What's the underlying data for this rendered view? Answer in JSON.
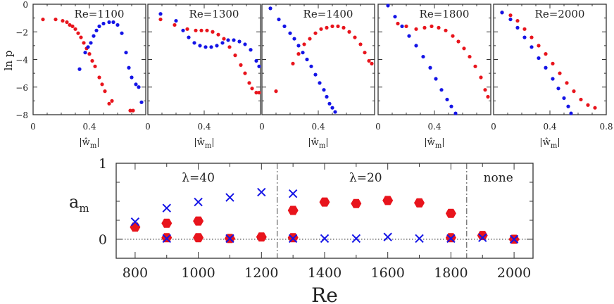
{
  "colors": {
    "red": "#e8141c",
    "blue": "#1414e6",
    "axis": "#333333"
  },
  "chart_data": [
    {
      "type": "scatter",
      "ylabel": "ln p",
      "xlabel": "|ŵ_m|",
      "xticks": [
        "0",
        "0.4",
        "0",
        "0.4",
        "0",
        "0.4",
        "0",
        "0.4",
        "0",
        "0.4",
        "0.8"
      ],
      "yticks": [
        "0",
        "−2",
        "−4",
        "−6",
        "−8"
      ],
      "panels": [
        {
          "title": "Re=1100",
          "xlim": [
            0,
            0.8
          ],
          "ylim": [
            -8,
            0
          ],
          "series": [
            {
              "color": "red",
              "points": [
                [
                  0.07,
                  -1.1
                ],
                [
                  0.16,
                  -1.1
                ],
                [
                  0.21,
                  -1.2
                ],
                [
                  0.24,
                  -1.3
                ],
                [
                  0.26,
                  -1.5
                ],
                [
                  0.28,
                  -1.6
                ],
                [
                  0.3,
                  -1.8
                ],
                [
                  0.32,
                  -2.1
                ],
                [
                  0.34,
                  -2.4
                ],
                [
                  0.36,
                  -2.8
                ],
                [
                  0.38,
                  -3.2
                ],
                [
                  0.4,
                  -3.6
                ],
                [
                  0.42,
                  -4.1
                ],
                [
                  0.44,
                  -4.5
                ],
                [
                  0.47,
                  -5.3
                ],
                [
                  0.49,
                  -5.8
                ],
                [
                  0.51,
                  -6.3
                ],
                [
                  0.54,
                  -7.2
                ],
                [
                  0.56,
                  -7.0
                ],
                [
                  0.69,
                  -7.7
                ],
                [
                  0.71,
                  -7.7
                ]
              ]
            },
            {
              "color": "blue",
              "points": [
                [
                  0.33,
                  -4.7
                ],
                [
                  0.37,
                  -3.5
                ],
                [
                  0.39,
                  -3.1
                ],
                [
                  0.41,
                  -2.8
                ],
                [
                  0.43,
                  -2.3
                ],
                [
                  0.45,
                  -1.9
                ],
                [
                  0.47,
                  -1.6
                ],
                [
                  0.5,
                  -1.4
                ],
                [
                  0.54,
                  -1.3
                ],
                [
                  0.57,
                  -1.3
                ],
                [
                  0.6,
                  -1.5
                ],
                [
                  0.63,
                  -2.1
                ],
                [
                  0.66,
                  -3.5
                ],
                [
                  0.68,
                  -4.6
                ],
                [
                  0.7,
                  -5.3
                ],
                [
                  0.73,
                  -5.8
                ],
                [
                  0.75,
                  -6.0
                ],
                [
                  0.77,
                  -7.1
                ]
              ]
            }
          ]
        },
        {
          "title": "Re=1300",
          "xlim": [
            0,
            0.8
          ],
          "ylim": [
            -8,
            0
          ],
          "series": [
            {
              "color": "red",
              "points": [
                [
                  0.09,
                  -1.1
                ],
                [
                  0.19,
                  -1.5
                ],
                [
                  0.28,
                  -1.8
                ],
                [
                  0.34,
                  -1.9
                ],
                [
                  0.38,
                  -1.9
                ],
                [
                  0.42,
                  -1.9
                ],
                [
                  0.46,
                  -2.0
                ],
                [
                  0.5,
                  -2.2
                ],
                [
                  0.54,
                  -2.5
                ],
                [
                  0.58,
                  -3.1
                ],
                [
                  0.62,
                  -3.7
                ],
                [
                  0.66,
                  -4.4
                ],
                [
                  0.69,
                  -5.0
                ],
                [
                  0.72,
                  -5.7
                ],
                [
                  0.74,
                  -6.1
                ],
                [
                  0.77,
                  -6.4
                ],
                [
                  0.79,
                  -6.4
                ]
              ]
            },
            {
              "color": "blue",
              "points": [
                [
                  0.09,
                  -0.7
                ],
                [
                  0.2,
                  -1.2
                ],
                [
                  0.25,
                  -1.9
                ],
                [
                  0.29,
                  -2.4
                ],
                [
                  0.33,
                  -2.8
                ],
                [
                  0.37,
                  -3.0
                ],
                [
                  0.41,
                  -3.1
                ],
                [
                  0.45,
                  -3.1
                ],
                [
                  0.49,
                  -3.0
                ],
                [
                  0.53,
                  -2.8
                ],
                [
                  0.57,
                  -2.6
                ],
                [
                  0.61,
                  -2.6
                ],
                [
                  0.65,
                  -2.7
                ],
                [
                  0.69,
                  -2.9
                ],
                [
                  0.73,
                  -3.3
                ],
                [
                  0.77,
                  -4.1
                ],
                [
                  0.79,
                  -4.5
                ]
              ]
            }
          ]
        },
        {
          "title": "Re=1400",
          "xlim": [
            0,
            0.8
          ],
          "ylim": [
            -8,
            0
          ],
          "series": [
            {
              "color": "red",
              "points": [
                [
                  0.1,
                  -6.3
                ],
                [
                  0.22,
                  -4.3
                ],
                [
                  0.26,
                  -3.6
                ],
                [
                  0.3,
                  -2.9
                ],
                [
                  0.34,
                  -2.5
                ],
                [
                  0.38,
                  -2.1
                ],
                [
                  0.42,
                  -1.8
                ],
                [
                  0.46,
                  -1.7
                ],
                [
                  0.5,
                  -1.6
                ],
                [
                  0.54,
                  -1.6
                ],
                [
                  0.58,
                  -1.7
                ],
                [
                  0.62,
                  -2.0
                ],
                [
                  0.66,
                  -2.4
                ],
                [
                  0.7,
                  -2.9
                ],
                [
                  0.73,
                  -3.5
                ],
                [
                  0.76,
                  -4.1
                ],
                [
                  0.78,
                  -4.3
                ]
              ]
            },
            {
              "color": "blue",
              "points": [
                [
                  0.06,
                  -0.3
                ],
                [
                  0.12,
                  -1.1
                ],
                [
                  0.16,
                  -1.6
                ],
                [
                  0.2,
                  -2.1
                ],
                [
                  0.23,
                  -2.5
                ],
                [
                  0.26,
                  -3.0
                ],
                [
                  0.29,
                  -3.5
                ],
                [
                  0.32,
                  -4.0
                ],
                [
                  0.35,
                  -4.5
                ],
                [
                  0.38,
                  -5.1
                ],
                [
                  0.41,
                  -5.7
                ],
                [
                  0.44,
                  -6.2
                ],
                [
                  0.46,
                  -6.7
                ],
                [
                  0.48,
                  -7.2
                ],
                [
                  0.5,
                  -7.5
                ],
                [
                  0.52,
                  -7.8
                ]
              ]
            }
          ]
        },
        {
          "title": "Re=1800",
          "xlim": [
            0,
            0.8
          ],
          "ylim": [
            -8,
            0
          ],
          "series": [
            {
              "color": "red",
              "points": [
                [
                  0.14,
                  -1.4
                ],
                [
                  0.2,
                  -1.6
                ],
                [
                  0.27,
                  -1.8
                ],
                [
                  0.33,
                  -1.7
                ],
                [
                  0.38,
                  -1.6
                ],
                [
                  0.43,
                  -1.7
                ],
                [
                  0.48,
                  -1.9
                ],
                [
                  0.53,
                  -2.3
                ],
                [
                  0.57,
                  -2.7
                ],
                [
                  0.61,
                  -3.2
                ],
                [
                  0.65,
                  -3.8
                ],
                [
                  0.69,
                  -4.5
                ],
                [
                  0.73,
                  -5.3
                ],
                [
                  0.76,
                  -6.2
                ],
                [
                  0.78,
                  -6.7
                ]
              ]
            },
            {
              "color": "blue",
              "points": [
                [
                  0.07,
                  -0.1
                ],
                [
                  0.12,
                  -0.9
                ],
                [
                  0.17,
                  -1.6
                ],
                [
                  0.22,
                  -2.3
                ],
                [
                  0.27,
                  -3.0
                ],
                [
                  0.32,
                  -3.8
                ],
                [
                  0.37,
                  -4.6
                ],
                [
                  0.41,
                  -5.4
                ],
                [
                  0.45,
                  -6.2
                ],
                [
                  0.49,
                  -6.9
                ],
                [
                  0.52,
                  -7.4
                ],
                [
                  0.55,
                  -7.9
                ]
              ]
            }
          ]
        },
        {
          "title": "Re=2000",
          "xlim": [
            0,
            0.8
          ],
          "ylim": [
            -8,
            0
          ],
          "series": [
            {
              "color": "red",
              "points": [
                [
                  0.06,
                  -0.6
                ],
                [
                  0.12,
                  -0.8
                ],
                [
                  0.17,
                  -1.2
                ],
                [
                  0.22,
                  -1.8
                ],
                [
                  0.27,
                  -2.4
                ],
                [
                  0.32,
                  -3.0
                ],
                [
                  0.37,
                  -3.6
                ],
                [
                  0.42,
                  -4.3
                ],
                [
                  0.47,
                  -5.0
                ],
                [
                  0.52,
                  -5.7
                ],
                [
                  0.57,
                  -6.3
                ],
                [
                  0.62,
                  -6.9
                ],
                [
                  0.67,
                  -7.3
                ],
                [
                  0.72,
                  -7.5
                ]
              ]
            },
            {
              "color": "blue",
              "points": [
                [
                  0.06,
                  -0.6
                ],
                [
                  0.12,
                  -1.1
                ],
                [
                  0.17,
                  -1.7
                ],
                [
                  0.22,
                  -2.4
                ],
                [
                  0.27,
                  -3.1
                ],
                [
                  0.32,
                  -3.9
                ],
                [
                  0.37,
                  -4.6
                ],
                [
                  0.42,
                  -5.4
                ],
                [
                  0.46,
                  -6.1
                ],
                [
                  0.5,
                  -6.8
                ],
                [
                  0.53,
                  -7.4
                ],
                [
                  0.55,
                  -7.9
                ]
              ]
            }
          ]
        }
      ]
    },
    {
      "type": "scatter",
      "xlabel": "Re",
      "ylabel": "a_m",
      "xlim": [
        740,
        2060
      ],
      "ylim": [
        -0.25,
        1
      ],
      "xticks": [
        800,
        1000,
        1200,
        1400,
        1600,
        1800,
        2000
      ],
      "yticks": [
        {
          "value": 0,
          "label": "0"
        },
        {
          "value": 1,
          "label": "1"
        }
      ],
      "regions": [
        {
          "label": "λ=40",
          "center": 1000
        },
        {
          "label": "λ=20",
          "center": 1530
        },
        {
          "label": "none",
          "center": 1950
        }
      ],
      "dividers": [
        1250,
        1850
      ],
      "red_hexagons": [
        [
          800,
          0.16
        ],
        [
          900,
          0.21
        ],
        [
          900,
          0.02
        ],
        [
          1000,
          0.24
        ],
        [
          1000,
          0.02
        ],
        [
          1100,
          0.01
        ],
        [
          1200,
          0.03
        ],
        [
          1300,
          0.38
        ],
        [
          1300,
          0.02
        ],
        [
          1400,
          0.49
        ],
        [
          1500,
          0.47
        ],
        [
          1600,
          0.51
        ],
        [
          1700,
          0.48
        ],
        [
          1800,
          0.34
        ],
        [
          1800,
          0.02
        ],
        [
          1900,
          0.05
        ],
        [
          2000,
          0.0
        ]
      ],
      "blue_crosses": [
        [
          800,
          0.23
        ],
        [
          900,
          0.41
        ],
        [
          900,
          0.01
        ],
        [
          1000,
          0.49
        ],
        [
          1100,
          0.55
        ],
        [
          1100,
          0.01
        ],
        [
          1200,
          0.62
        ],
        [
          1300,
          0.6
        ],
        [
          1300,
          0.01
        ],
        [
          1400,
          0.01
        ],
        [
          1500,
          0.01
        ],
        [
          1600,
          0.03
        ],
        [
          1700,
          0.01
        ],
        [
          1800,
          0.01
        ],
        [
          1900,
          0.02
        ],
        [
          2000,
          0.0
        ]
      ]
    }
  ]
}
